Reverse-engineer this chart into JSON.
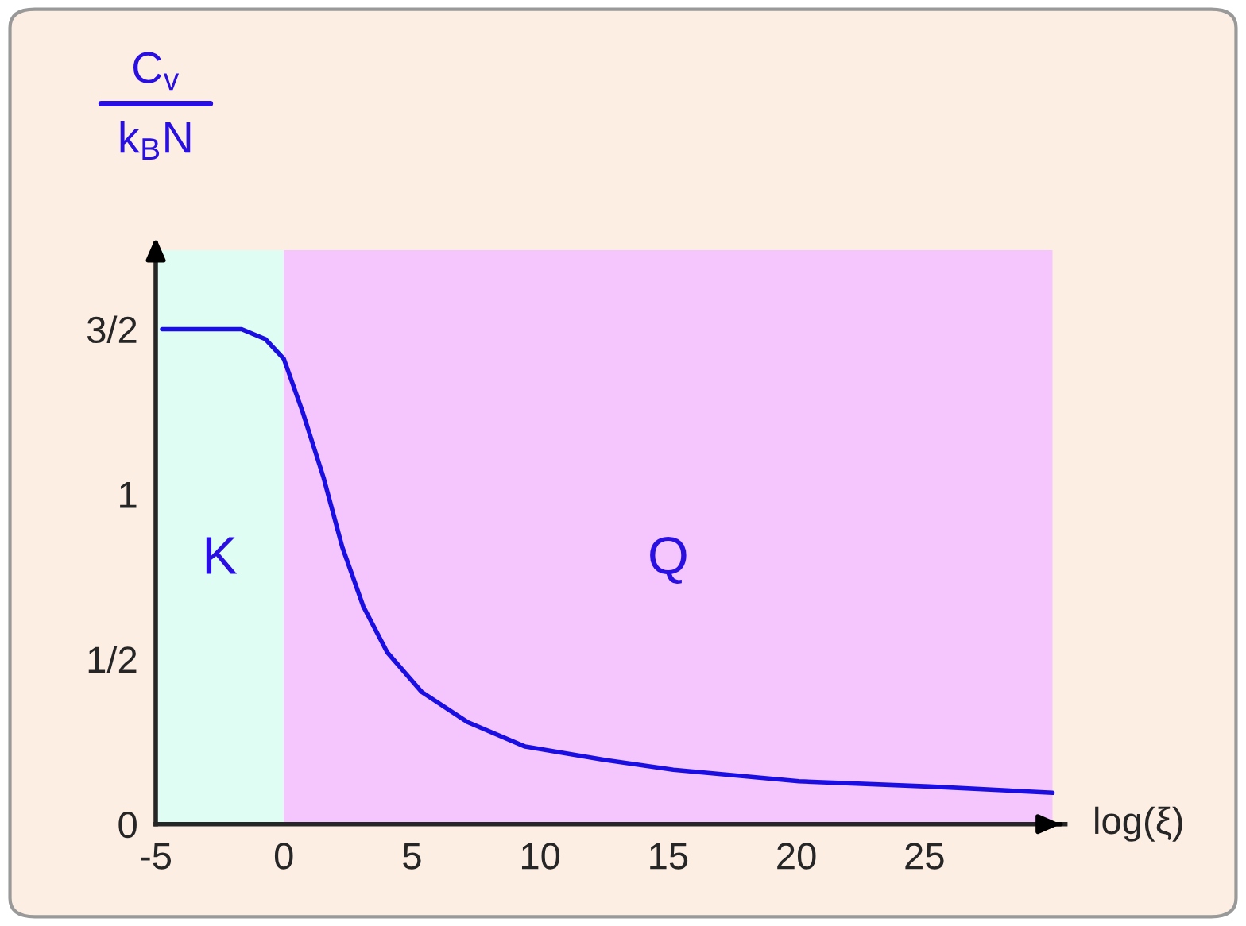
{
  "chart_data": {
    "type": "line",
    "xlabel": "log(ξ)",
    "ylabel": "C$_{v}$\nk$_{B}$N",
    "x": [
      -4.75,
      -1.65,
      -0.72,
      0,
      0.73,
      1.55,
      2.28,
      3.1,
      4.04,
      5.39,
      7.15,
      9.42,
      12.5,
      15.2,
      20.1,
      25.2,
      30.0
    ],
    "series": [
      {
        "color": "#1a0fe0",
        "values": [
          1.5,
          1.5,
          1.47,
          1.41,
          1.25,
          1.05,
          0.84,
          0.66,
          0.52,
          0.4,
          0.31,
          0.235,
          0.195,
          0.165,
          0.13,
          0.114,
          0.095
        ]
      }
    ],
    "xlim": [
      -5,
      30.5
    ],
    "ylim": [
      0,
      1.74
    ],
    "xticks": [
      -5,
      0,
      5,
      10,
      15,
      20,
      25
    ],
    "yticks": [
      0,
      {
        "value": 0.5,
        "label": "1/2"
      },
      1,
      {
        "value": 1.5,
        "label": "3/2"
      }
    ],
    "bands": [
      {
        "axis": "x",
        "from": -5,
        "to": 0,
        "label": "K",
        "color": "#e0fdf4"
      },
      {
        "axis": "x",
        "from": 0,
        "to": 30,
        "label": "Q",
        "color": "#f5c6fd"
      }
    ],
    "grid": false,
    "legend": false,
    "marker": "none",
    "line_style": "solid"
  }
}
